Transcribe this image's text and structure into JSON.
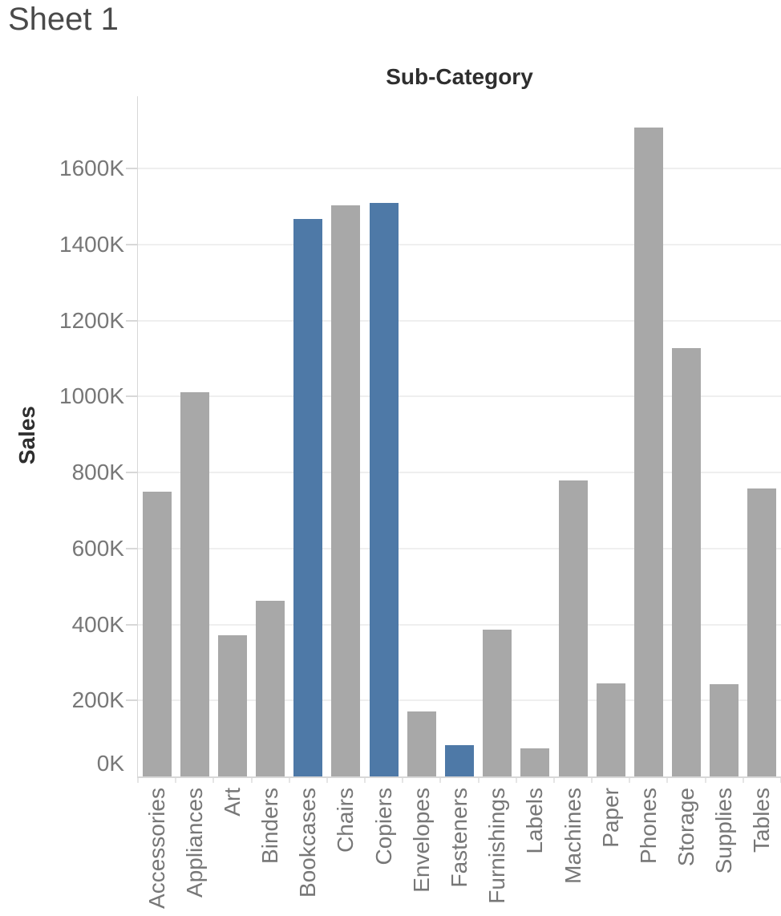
{
  "page": {
    "title": "Sheet 1"
  },
  "chart_data": {
    "type": "bar",
    "title": "Sub-Category",
    "xlabel": "Sub-Category",
    "ylabel": "Sales",
    "units": "sales in thousands (K)",
    "categories": [
      "Accessories",
      "Appliances",
      "Art",
      "Binders",
      "Bookcases",
      "Chairs",
      "Copiers",
      "Envelopes",
      "Fasteners",
      "Furnishings",
      "Labels",
      "Machines",
      "Paper",
      "Phones",
      "Storage",
      "Supplies",
      "Tables"
    ],
    "values_k": [
      749,
      1011,
      372,
      462,
      1466,
      1502,
      1509,
      171,
      83,
      386,
      73,
      779,
      244,
      1707,
      1127,
      243,
      757
    ],
    "highlighted_categories": [
      "Bookcases",
      "Copiers",
      "Fasteners"
    ],
    "y_ticks_k": [
      0,
      200,
      400,
      600,
      800,
      1000,
      1200,
      1400,
      1600
    ],
    "y_tick_labels": [
      "0K",
      "200K",
      "400K",
      "600K",
      "800K",
      "1000K",
      "1200K",
      "1400K",
      "1600K"
    ],
    "ylim_k": [
      0,
      1790
    ],
    "grid": true,
    "legend": "none",
    "colors": {
      "bar_default": "#a8a8a8",
      "bar_highlight": "#4e79a7",
      "axis_text": "#777777",
      "header_text": "#2e2e2e",
      "sheet_title_text": "#4a4a4a",
      "gridline": "#efefef",
      "axis_line": "#d8d8d8",
      "category_tick": "#e5e5e5"
    }
  }
}
